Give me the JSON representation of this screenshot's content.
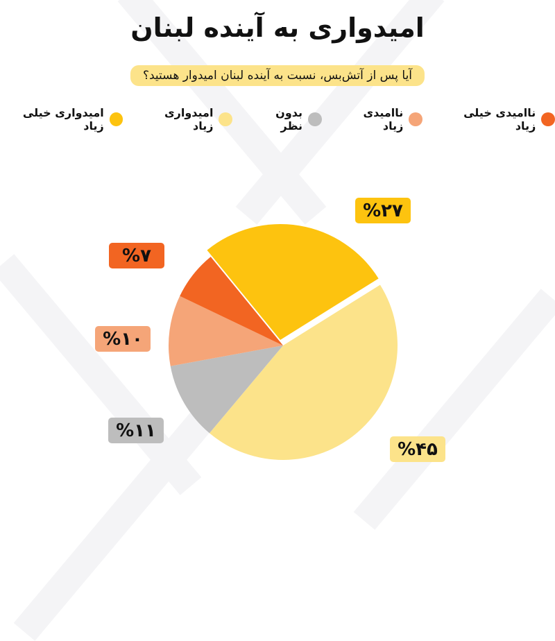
{
  "title": "امیدواری به آینده لبنان",
  "subtitle": "آیا پس از آتش‌بس، نسبت به آینده لبنان امیدوار هستید؟",
  "chart_data": {
    "type": "pie",
    "title": "امیدواری به آینده لبنان",
    "subtitle": "آیا پس از آتش‌بس، نسبت به آینده لبنان امیدوار هستید؟",
    "legend_placement": "top",
    "slices": [
      {
        "name": "امیدواری زیاد",
        "value": 45,
        "label": "%۴۵",
        "color": "#fce38a"
      },
      {
        "name": "بدون نظر",
        "value": 11,
        "label": "%۱۱",
        "color": "#bdbdbd"
      },
      {
        "name": "ناامیدی زیاد",
        "value": 10,
        "label": "%۱۰",
        "color": "#f5a578"
      },
      {
        "name": "ناامیدی خیلی زیاد",
        "value": 7,
        "label": "%۷",
        "color": "#f26522"
      },
      {
        "name": "امیدواری خیلی زیاد",
        "value": 27,
        "label": "%۲۷",
        "color": "#fdc30f",
        "exploded": true
      }
    ],
    "legend": [
      {
        "name": "ناامیدی خیلی زیاد",
        "color": "#f26522"
      },
      {
        "name": "ناامیدی زیاد",
        "color": "#f5a578"
      },
      {
        "name": "بدون نظر",
        "color": "#bdbdbd"
      },
      {
        "name": "امیدواری زیاد",
        "color": "#fce38a"
      },
      {
        "name": "امیدواری خیلی زیاد",
        "color": "#fdc30f"
      }
    ]
  }
}
